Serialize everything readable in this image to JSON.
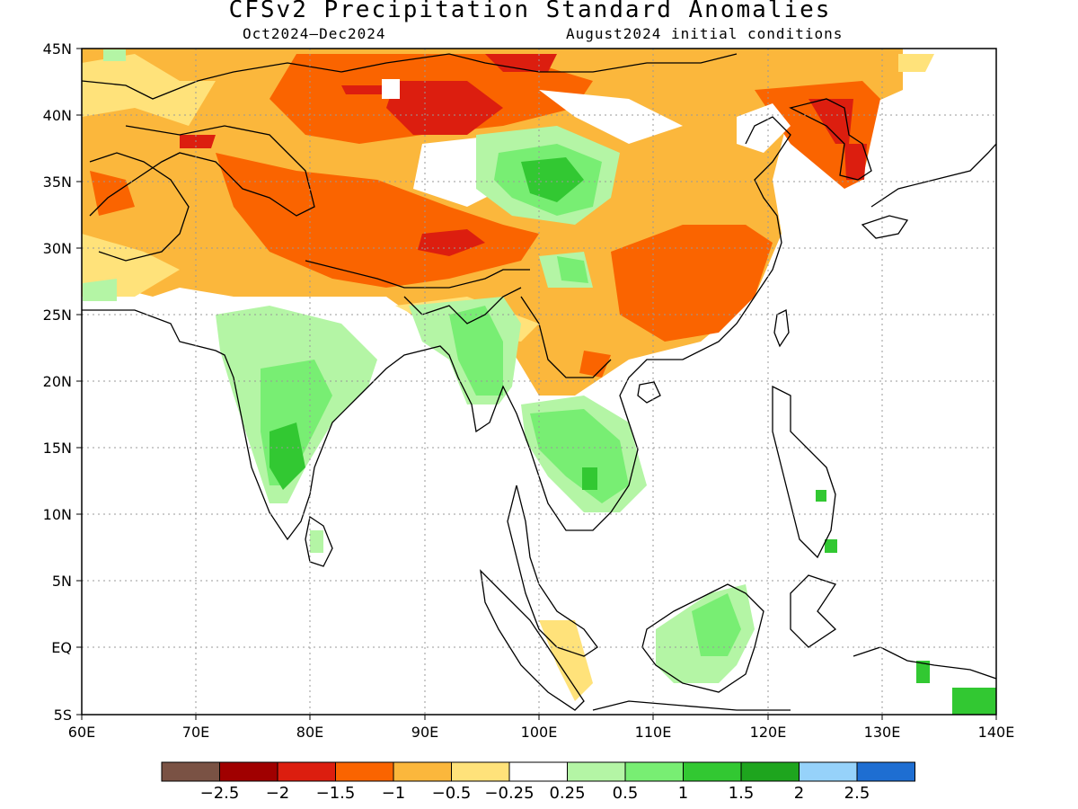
{
  "map": {
    "title": "CFSv2 Precipitation Standard Anomalies",
    "period": "Oct2024–Dec2024",
    "initial_conditions": "August2024 initial conditions",
    "lat_labels": [
      "45N",
      "40N",
      "35N",
      "30N",
      "25N",
      "20N",
      "15N",
      "10N",
      "5N",
      "EQ",
      "5S"
    ],
    "lon_labels": [
      "60E",
      "70E",
      "80E",
      "90E",
      "100E",
      "110E",
      "120E",
      "130E",
      "140E"
    ],
    "legend": {
      "colors": [
        "#7a5244",
        "#a00000",
        "#dc1e0f",
        "#fa6400",
        "#fbb73c",
        "#ffe27a",
        "#ffffff",
        "#b4f5a5",
        "#78ee73",
        "#32c832",
        "#1ea51e",
        "#96d2fa",
        "#1e6ed2"
      ],
      "tick_labels": [
        "−2.5",
        "−2",
        "−1.5",
        "−1",
        "−0.5",
        "−0.25",
        "0.25",
        "0.5",
        "1",
        "1.5",
        "2",
        "2.5"
      ]
    }
  }
}
